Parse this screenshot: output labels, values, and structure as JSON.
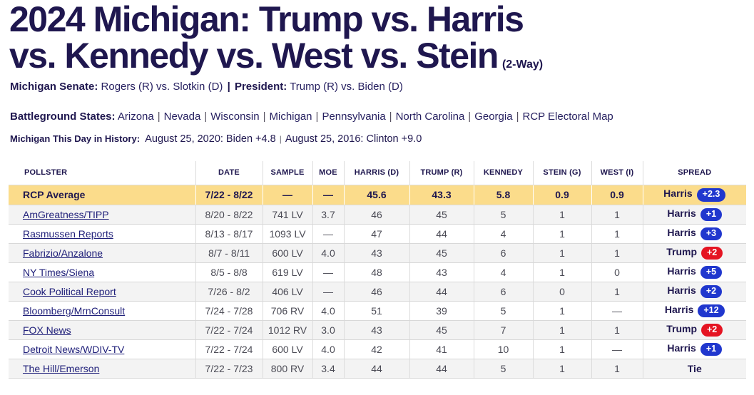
{
  "title": {
    "line1": "2024 Michigan: Trump vs. Harris",
    "line2": "vs. Kennedy vs. West vs. Stein",
    "suffix": "(2-Way)"
  },
  "subnav": {
    "senate_label": "Michigan Senate:",
    "senate_value": "Rogers (R) vs. Slotkin (D)",
    "divider": "|",
    "president_label": "President:",
    "president_value": "Trump (R) vs. Biden (D)"
  },
  "battleground": {
    "label": "Battleground States:",
    "links": [
      "Arizona",
      "Nevada",
      "Wisconsin",
      "Michigan",
      "Pennsylvania",
      "North Carolina",
      "Georgia",
      "RCP Electoral Map"
    ]
  },
  "history": {
    "label": "Michigan This Day in History:",
    "items": [
      "August 25, 2020: Biden +4.8",
      "August 25, 2016: Clinton +9.0"
    ]
  },
  "table": {
    "columns": [
      "POLLSTER",
      "DATE",
      "SAMPLE",
      "MOE",
      "HARRIS (D)",
      "TRUMP (R)",
      "KENNEDY",
      "STEIN (G)",
      "WEST (I)",
      "SPREAD"
    ],
    "average": {
      "pollster": "RCP Average",
      "date": "7/22 - 8/22",
      "sample": "—",
      "moe": "—",
      "harris": "45.6",
      "trump": "43.3",
      "kennedy": "5.8",
      "stein": "0.9",
      "west": "0.9",
      "spread_name": "Harris",
      "spread_value": "+2.3",
      "spread_color": "blue"
    },
    "rows": [
      {
        "pollster": "AmGreatness/TIPP",
        "date": "8/20 - 8/22",
        "sample": "741 LV",
        "moe": "3.7",
        "harris": "46",
        "trump": "45",
        "kennedy": "5",
        "stein": "1",
        "west": "1",
        "spread_name": "Harris",
        "spread_value": "+1",
        "spread_color": "blue"
      },
      {
        "pollster": "Rasmussen Reports",
        "date": "8/13 - 8/17",
        "sample": "1093 LV",
        "moe": "—",
        "harris": "47",
        "trump": "44",
        "kennedy": "4",
        "stein": "1",
        "west": "1",
        "spread_name": "Harris",
        "spread_value": "+3",
        "spread_color": "blue"
      },
      {
        "pollster": "Fabrizio/Anzalone",
        "date": "8/7 - 8/11",
        "sample": "600 LV",
        "moe": "4.0",
        "harris": "43",
        "trump": "45",
        "kennedy": "6",
        "stein": "1",
        "west": "1",
        "spread_name": "Trump",
        "spread_value": "+2",
        "spread_color": "red"
      },
      {
        "pollster": "NY Times/Siena",
        "date": "8/5 - 8/8",
        "sample": "619 LV",
        "moe": "—",
        "harris": "48",
        "trump": "43",
        "kennedy": "4",
        "stein": "1",
        "west": "0",
        "spread_name": "Harris",
        "spread_value": "+5",
        "spread_color": "blue"
      },
      {
        "pollster": "Cook Political Report",
        "date": "7/26 - 8/2",
        "sample": "406 LV",
        "moe": "—",
        "harris": "46",
        "trump": "44",
        "kennedy": "6",
        "stein": "0",
        "west": "1",
        "spread_name": "Harris",
        "spread_value": "+2",
        "spread_color": "blue"
      },
      {
        "pollster": "Bloomberg/MrnConsult",
        "date": "7/24 - 7/28",
        "sample": "706 RV",
        "moe": "4.0",
        "harris": "51",
        "trump": "39",
        "kennedy": "5",
        "stein": "1",
        "west": "—",
        "spread_name": "Harris",
        "spread_value": "+12",
        "spread_color": "blue"
      },
      {
        "pollster": "FOX News",
        "date": "7/22 - 7/24",
        "sample": "1012 RV",
        "moe": "3.0",
        "harris": "43",
        "trump": "45",
        "kennedy": "7",
        "stein": "1",
        "west": "1",
        "spread_name": "Trump",
        "spread_value": "+2",
        "spread_color": "red"
      },
      {
        "pollster": "Detroit News/WDIV-TV",
        "date": "7/22 - 7/24",
        "sample": "600 LV",
        "moe": "4.0",
        "harris": "42",
        "trump": "41",
        "kennedy": "10",
        "stein": "1",
        "west": "—",
        "spread_name": "Harris",
        "spread_value": "+1",
        "spread_color": "blue"
      },
      {
        "pollster": "The Hill/Emerson",
        "date": "7/22 - 7/23",
        "sample": "800 RV",
        "moe": "3.4",
        "harris": "44",
        "trump": "44",
        "kennedy": "5",
        "stein": "1",
        "west": "1",
        "spread_name": "Tie",
        "spread_value": "",
        "spread_color": "none"
      }
    ]
  },
  "colors": {
    "accent_navy": "#1F174F",
    "highlight_yellow": "#FBDC8B",
    "badge_blue": "#2037CE",
    "badge_red": "#E51422",
    "alt_row": "#F3F3F3"
  }
}
